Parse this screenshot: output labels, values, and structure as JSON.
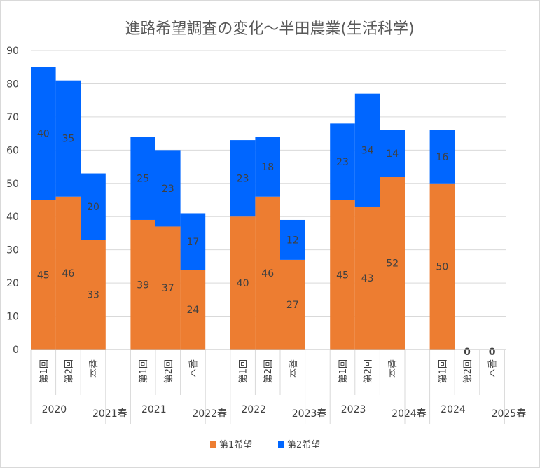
{
  "chart_data": {
    "type": "bar",
    "stacked": true,
    "title": "進路希望調査の変化～半田農業(生活科学)",
    "ylim": [
      0,
      90
    ],
    "yticks": [
      0,
      10,
      20,
      30,
      40,
      50,
      60,
      70,
      80,
      90
    ],
    "grid": true,
    "legend_position": "bottom",
    "groups": [
      {
        "labels": [
          "2020",
          "2021春"
        ],
        "categories": [
          "第1回",
          "第2回",
          "本番"
        ]
      },
      {
        "labels": [
          "2021",
          "2022春"
        ],
        "categories": [
          "第1回",
          "第2回",
          "本番"
        ]
      },
      {
        "labels": [
          "2022",
          "2023春"
        ],
        "categories": [
          "第1回",
          "第2回",
          "本番"
        ]
      },
      {
        "labels": [
          "2023",
          "2024春"
        ],
        "categories": [
          "第1回",
          "第2回",
          "本番"
        ]
      },
      {
        "labels": [
          "2024",
          "2025春"
        ],
        "categories": [
          "第1回",
          "第2回",
          "本番"
        ]
      }
    ],
    "series": [
      {
        "name": "第1希望",
        "color": "#ED7D31",
        "values": [
          [
            45,
            46,
            33
          ],
          [
            39,
            37,
            24
          ],
          [
            40,
            46,
            27
          ],
          [
            45,
            43,
            52
          ],
          [
            50,
            0,
            0
          ]
        ],
        "labels": [
          [
            "45",
            "46",
            "33"
          ],
          [
            "39",
            "37",
            "24"
          ],
          [
            "40",
            "46",
            "27"
          ],
          [
            "45",
            "43",
            "52"
          ],
          [
            "50",
            "",
            ""
          ]
        ]
      },
      {
        "name": "第2希望",
        "color": "#0066FF",
        "values": [
          [
            40,
            35,
            20
          ],
          [
            25,
            23,
            17
          ],
          [
            23,
            18,
            12
          ],
          [
            23,
            34,
            14
          ],
          [
            16,
            0,
            0
          ]
        ],
        "labels": [
          [
            "40",
            "35",
            "20"
          ],
          [
            "25",
            "23",
            "17"
          ],
          [
            "23",
            "18",
            "12"
          ],
          [
            "23",
            "34",
            "14"
          ],
          [
            "16",
            "0",
            "0"
          ]
        ]
      }
    ]
  }
}
